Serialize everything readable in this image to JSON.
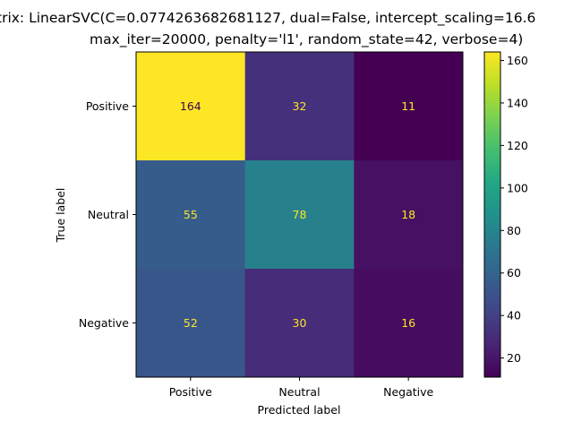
{
  "chart_data": {
    "type": "heatmap",
    "title_line1": "trix: LinearSVC(C=0.0774263682681127, dual=False, intercept_scaling=16.6",
    "title_line2": "max_iter=20000, penalty='l1', random_state=42, verbose=4)",
    "xlabel": "Predicted label",
    "ylabel": "True label",
    "x_categories": [
      "Positive",
      "Neutral",
      "Negative"
    ],
    "y_categories": [
      "Positive",
      "Neutral",
      "Negative"
    ],
    "matrix": [
      [
        164,
        32,
        11
      ],
      [
        55,
        78,
        18
      ],
      [
        52,
        30,
        16
      ]
    ],
    "colorbar": {
      "min": 11,
      "max": 164,
      "ticks": [
        20,
        40,
        60,
        80,
        100,
        120,
        140,
        160
      ],
      "colormap": "viridis"
    }
  }
}
